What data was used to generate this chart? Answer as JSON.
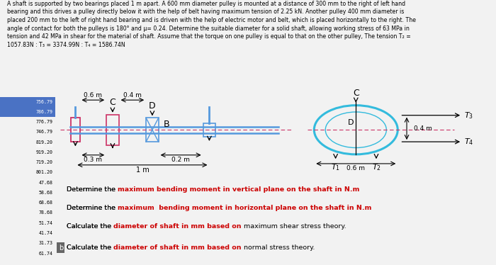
{
  "header_lines": [
    "A shaft is supported by two bearings placed 1 m apart. A 600 mm diameter pulley is mounted at a distance of 300 mm to the right of left hand",
    "bearing and this drives a pulley directly below it with the help of belt having maximum tension of 2.25 kN. Another pulley 400 mm diameter is",
    "placed 200 mm to the left of right hand bearing and is driven with the help of electric motor and belt, which is placed horizontally to the right. The",
    "angle of contact for both the pulleys is 180° and μ= 0.24. Determine the suitable diameter for a solid shaft, allowing working stress of 63 MPa in",
    "tension and 42 MPa in shear for the material of shaft. Assume that the torque on one pulley is equal to that on the other pulley, The tension T₂ =",
    "1057.83N : T₃ = 3374.99N : T₄ = 1586.74N"
  ],
  "left_numbers": [
    "756.79",
    "786.79",
    "776.79",
    "746.79",
    "819.20",
    "919.20",
    "719.20",
    "801.20",
    "47.68",
    "58.68",
    "68.68",
    "78.68",
    "51.74",
    "41.74",
    "31.73",
    "61.74"
  ],
  "left_panel_color": "#4a72c4",
  "bg_color": "#f2f2f2",
  "shaft_color": "#5599dd",
  "bearing_color": "#cc3366",
  "dashed_color": "#cc3366",
  "circle_color": "#33bbdd",
  "questions": [
    [
      "Determine the ",
      "maximum bending moment in vertical plane on the shaft in N.m",
      ""
    ],
    [
      "Determine the ",
      "maximum  bending moment in horizontal plane on the shaft in N.m",
      ""
    ],
    [
      "Calculate the ",
      "diameter of shaft in mm based on",
      " maximum shear stress theory."
    ],
    [
      "Calculate the ",
      "diameter of shaft in mm based on",
      " normal stress theory."
    ]
  ]
}
